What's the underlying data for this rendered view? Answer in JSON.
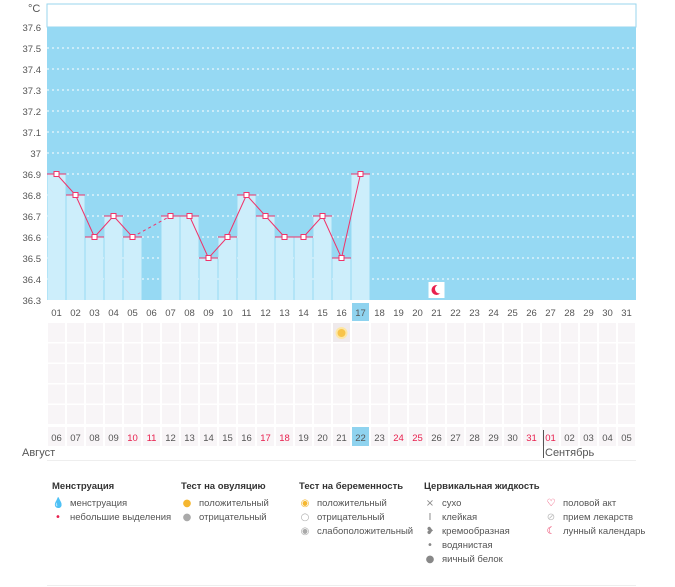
{
  "chart_data": {
    "type": "bar+line",
    "ylabel": "°C",
    "ylim": [
      36.3,
      37.6
    ],
    "yticks": [
      "37.6",
      "37.5",
      "37.4",
      "37.3",
      "37.2",
      "37.1",
      "37",
      "36.9",
      "36.8",
      "36.7",
      "36.6",
      "36.5",
      "36.4",
      "36.3"
    ],
    "cycle_days": [
      "01",
      "02",
      "03",
      "04",
      "05",
      "06",
      "07",
      "08",
      "09",
      "10",
      "11",
      "12",
      "13",
      "14",
      "15",
      "16",
      "17",
      "18",
      "19",
      "20",
      "21",
      "22",
      "23",
      "24",
      "25",
      "26",
      "27",
      "28",
      "29",
      "30",
      "31"
    ],
    "temperatures": [
      36.9,
      36.8,
      36.6,
      36.7,
      36.6,
      null,
      36.7,
      36.7,
      36.5,
      36.6,
      36.8,
      36.7,
      36.6,
      36.6,
      36.7,
      36.5,
      36.9,
      null,
      null,
      null,
      null,
      null,
      null,
      null,
      null,
      null,
      null,
      null,
      null,
      null,
      null
    ],
    "current_day": "17",
    "ovulation_test_positive_day": "16",
    "moon_day": "21",
    "dates": [
      "06",
      "07",
      "08",
      "09",
      "10",
      "11",
      "12",
      "13",
      "14",
      "15",
      "16",
      "17",
      "18",
      "19",
      "20",
      "21",
      "22",
      "23",
      "24",
      "25",
      "26",
      "27",
      "28",
      "29",
      "30",
      "31",
      "01",
      "02",
      "03",
      "04",
      "05"
    ],
    "weekend_dates_idx": [
      4,
      5,
      11,
      12,
      18,
      19,
      25,
      26
    ],
    "today_idx": 16,
    "months": [
      "Август",
      "Сентябрь"
    ],
    "colors": {
      "bg": "#96d9f3",
      "bar": "#cdeefb",
      "line": "#f0336a",
      "weekend": "#e8204e",
      "today": "#8fd3ef"
    }
  },
  "legend": [
    {
      "title": "Менструация",
      "items": [
        {
          "icon": "drops-icon",
          "label": "менструация"
        },
        {
          "icon": "drop-icon",
          "label": "небольшие выделения"
        }
      ]
    },
    {
      "title": "Тест на овуляцию",
      "items": [
        {
          "icon": "sun-positive-icon",
          "label": "положительный"
        },
        {
          "icon": "sun-negative-icon",
          "label": "отрицательный"
        }
      ]
    },
    {
      "title": "Тест на беременность",
      "items": [
        {
          "icon": "test-positive-icon",
          "label": "положительный"
        },
        {
          "icon": "test-negative-icon",
          "label": "отрицательный"
        },
        {
          "icon": "test-weak-icon",
          "label": "слабоположительный"
        }
      ]
    },
    {
      "title": "Цервикальная жидкость",
      "items": [
        {
          "icon": "cross-icon",
          "label": "сухо"
        },
        {
          "icon": "sticky-icon",
          "label": "клейкая"
        },
        {
          "icon": "creamy-icon",
          "label": "кремообразная"
        },
        {
          "icon": "watery-drop-icon",
          "label": "водянистая"
        },
        {
          "icon": "egg-white-icon",
          "label": "яичный белок"
        }
      ]
    },
    {
      "title": "",
      "items": [
        {
          "icon": "heart-icon",
          "label": "половой акт"
        },
        {
          "icon": "pill-icon",
          "label": "прием лекарств"
        },
        {
          "icon": "moon-icon",
          "label": "лунный календарь"
        }
      ]
    }
  ]
}
